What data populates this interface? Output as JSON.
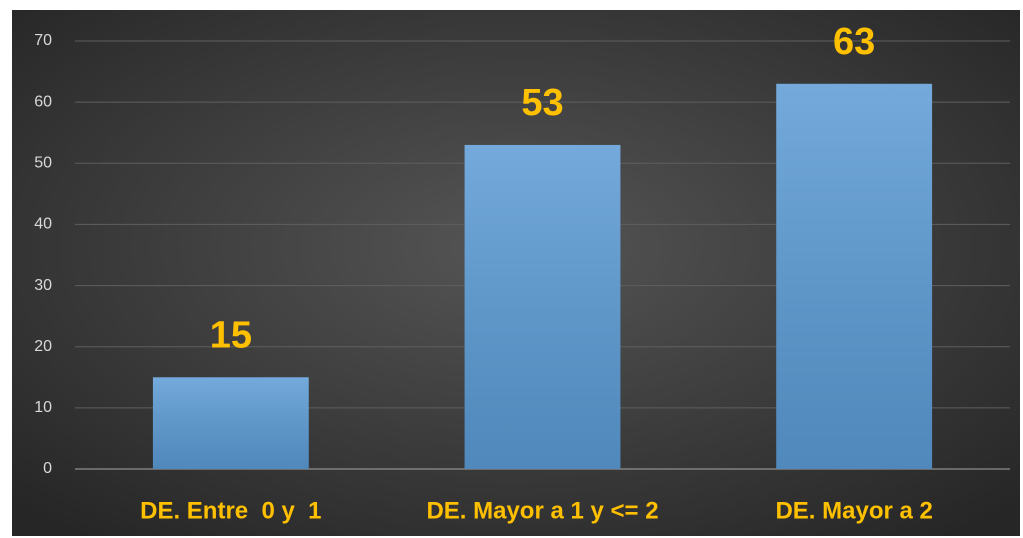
{
  "chart_data": {
    "type": "bar",
    "categories": [
      "DE. Entre  0 y  1",
      "DE. Mayor a 1 y <= 2",
      "DE. Mayor a 2"
    ],
    "values": [
      15,
      53,
      63
    ],
    "color": "#5b9bd5",
    "label_color": "#ffc000",
    "ylim": [
      0,
      70
    ],
    "yticks": [
      0,
      10,
      20,
      30,
      40,
      50,
      60,
      70
    ],
    "grid": true
  }
}
